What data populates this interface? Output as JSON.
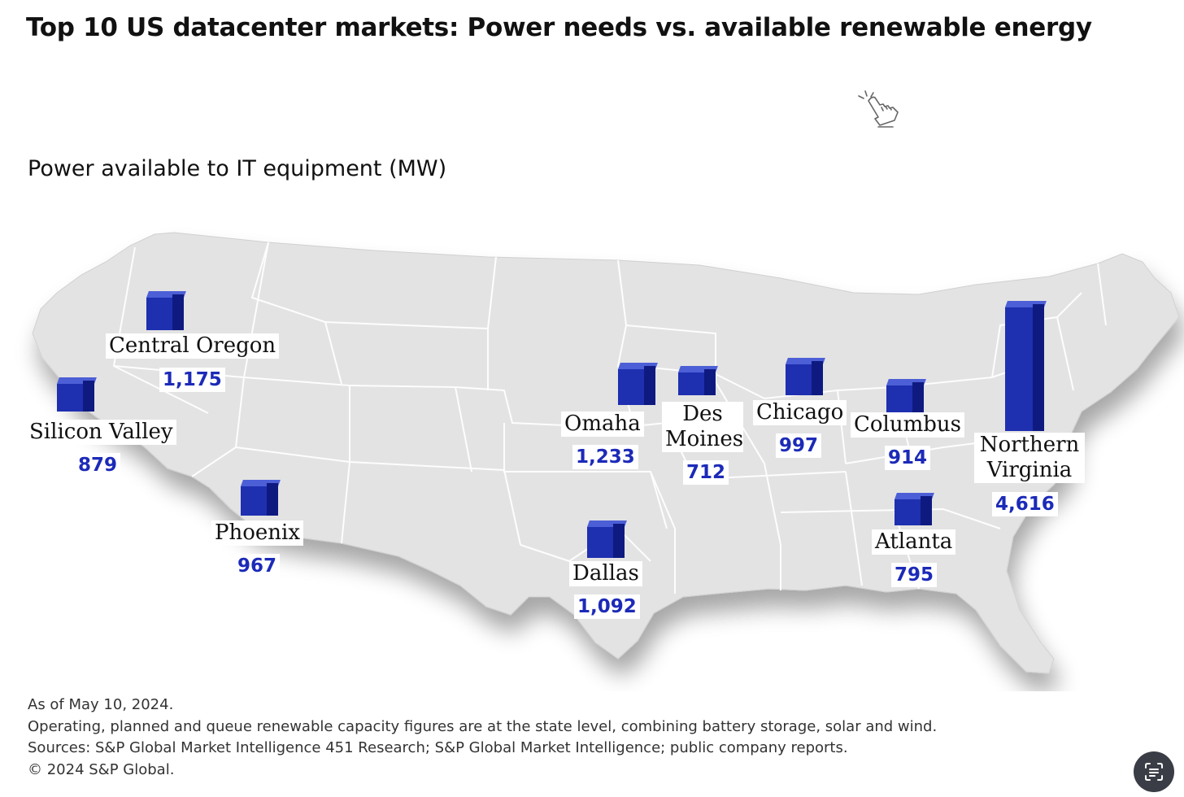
{
  "title": "Top 10 US datacenter markets: Power needs vs. available renewable energy",
  "subtitle": "Power available to IT equipment (MW)",
  "icons": {
    "pointer": "hand-pointer-click-icon",
    "scan": "scan-text-icon"
  },
  "colors": {
    "bar_front": "#1e2fb0",
    "bar_side": "#0e1a80",
    "bar_top": "#4d5fd6",
    "value_text": "#1c2ab8",
    "map_fill": "#e3e3e3"
  },
  "markets": [
    {
      "name": "Central Oregon",
      "value": "1,175"
    },
    {
      "name": "Silicon Valley",
      "value": "879"
    },
    {
      "name": "Phoenix",
      "value": "967"
    },
    {
      "name": "Omaha",
      "value": "1,233"
    },
    {
      "name": "Des Moines",
      "value": "712"
    },
    {
      "name": "Chicago",
      "value": "997"
    },
    {
      "name": "Columbus",
      "value": "914"
    },
    {
      "name": "Northern Virginia",
      "value": "4,616"
    },
    {
      "name": "Atlanta",
      "value": "795"
    },
    {
      "name": "Dallas",
      "value": "1,092"
    }
  ],
  "footnotes": {
    "date": "As of May 10, 2024.",
    "note": "Operating, planned and queue renewable capacity figures are at the state level, combining battery storage, solar and wind.",
    "sources": "Sources: S&P Global Market Intelligence 451 Research; S&P Global Market Intelligence; public company reports.",
    "copyright": "© 2024 S&P Global."
  }
}
